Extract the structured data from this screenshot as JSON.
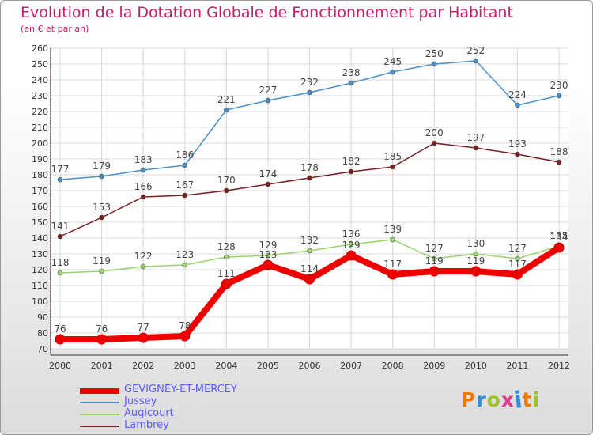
{
  "chart_data": {
    "type": "line",
    "title": "Evolution de la Dotation Globale de Fonctionnement par Habitant",
    "subtitle": "(en € et par an)",
    "xlabel": "",
    "ylabel": "",
    "ylim": [
      70,
      260
    ],
    "yticks": [
      70,
      80,
      90,
      100,
      110,
      120,
      130,
      140,
      150,
      160,
      170,
      180,
      190,
      200,
      210,
      220,
      230,
      240,
      250,
      260
    ],
    "categories": [
      "2000",
      "2001",
      "2002",
      "2003",
      "2004",
      "2005",
      "2006",
      "2007",
      "2008",
      "2009",
      "2010",
      "2011",
      "2012"
    ],
    "grid": true,
    "series": [
      {
        "name": "GEVIGNEY-ET-MERCEY",
        "color": "#ee0000",
        "emphasis": true,
        "values": [
          76,
          76,
          77,
          78,
          111,
          123,
          114,
          129,
          117,
          119,
          119,
          117,
          134
        ]
      },
      {
        "name": "Jussey",
        "color": "#4a90c8",
        "values": [
          177,
          179,
          183,
          186,
          221,
          227,
          232,
          238,
          245,
          250,
          252,
          224,
          230
        ]
      },
      {
        "name": "Augicourt",
        "color": "#9ad26b",
        "values": [
          118,
          119,
          122,
          123,
          128,
          129,
          132,
          136,
          139,
          127,
          130,
          127,
          135
        ]
      },
      {
        "name": "Lambrey",
        "color": "#7a1f1f",
        "values": [
          141,
          153,
          166,
          167,
          170,
          174,
          178,
          182,
          185,
          200,
          197,
          193,
          188
        ]
      }
    ],
    "legend_position": "bottom-left"
  },
  "logo": {
    "text": "Proxiti",
    "colors": [
      "#ee7a00",
      "#2f8fd8",
      "#9ec31c",
      "#e03a8a",
      "#2f8fd8",
      "#ee7a00",
      "#9ec31c"
    ]
  }
}
